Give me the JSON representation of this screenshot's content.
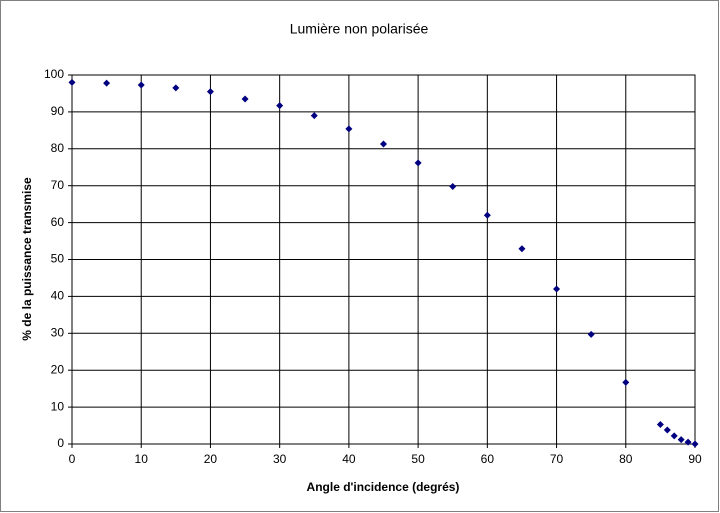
{
  "chart_data": {
    "type": "scatter",
    "title": "Lumière non polarisée",
    "x_label": "Angle d'incidence (degrés)",
    "y_label": "% de la puissance transmise",
    "x": [
      0,
      5,
      10,
      15,
      20,
      25,
      30,
      35,
      40,
      45,
      50,
      55,
      60,
      65,
      70,
      75,
      80,
      85,
      86,
      87,
      88,
      89,
      90
    ],
    "series": [
      {
        "color": "#000080",
        "values": [
          98,
          97.8,
          97.3,
          96.5,
          95.5,
          93.5,
          91.7,
          89,
          85.4,
          81.3,
          76.2,
          69.8,
          62,
          52.9,
          42,
          29.7,
          16.7,
          5.3,
          3.8,
          2.2,
          1.2,
          0.5,
          0
        ]
      }
    ],
    "xlim": [
      0,
      90
    ],
    "xticks": [
      0,
      10,
      20,
      30,
      40,
      50,
      60,
      70,
      80,
      90
    ],
    "ylim": [
      0,
      100
    ],
    "yticks": [
      0,
      10,
      20,
      30,
      40,
      50,
      60,
      70,
      80,
      90,
      100
    ],
    "grid": true
  }
}
